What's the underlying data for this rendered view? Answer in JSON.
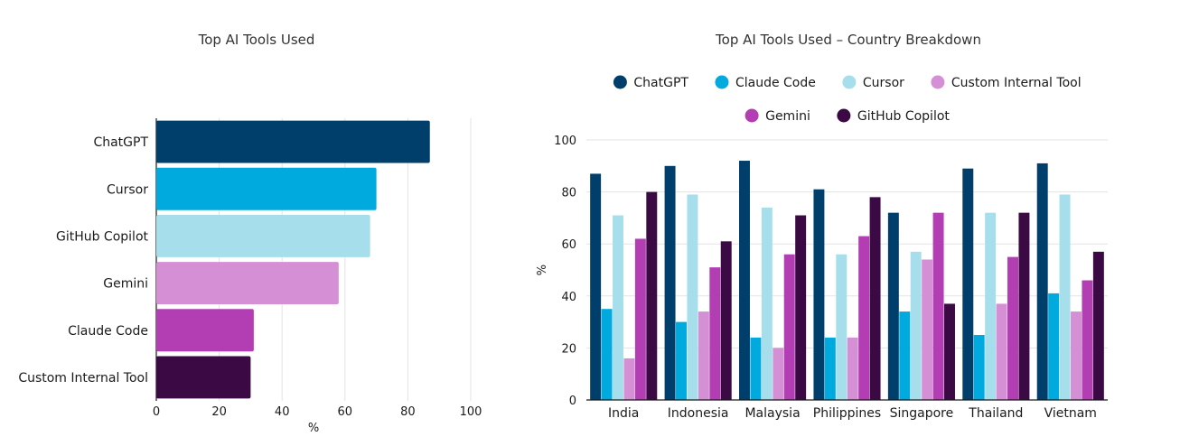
{
  "chart_data": [
    {
      "type": "bar",
      "orientation": "horizontal",
      "title": "Top AI Tools Used",
      "categories": [
        "ChatGPT",
        "Cursor",
        "GitHub Copilot",
        "Gemini",
        "Claude Code",
        "Custom Internal Tool"
      ],
      "values": [
        87,
        70,
        68,
        58,
        31,
        30
      ],
      "colors": [
        "#003f6b",
        "#00aadf",
        "#a6dfeb",
        "#d58fd5",
        "#b33db3",
        "#3b0a45"
      ],
      "xlabel": "%",
      "ylabel": "",
      "xlim": [
        0,
        100
      ],
      "xticks": [
        0,
        20,
        40,
        60,
        80,
        100
      ],
      "grid": true
    },
    {
      "type": "bar",
      "orientation": "vertical",
      "title": "Top AI Tools Used – Country Breakdown",
      "categories": [
        "India",
        "Indonesia",
        "Malaysia",
        "Philippines",
        "Singapore",
        "Thailand",
        "Vietnam"
      ],
      "series": [
        {
          "name": "ChatGPT",
          "color": "#003f6b",
          "values": [
            87,
            90,
            92,
            81,
            72,
            89,
            91
          ]
        },
        {
          "name": "Claude Code",
          "color": "#00aadf",
          "values": [
            35,
            30,
            24,
            24,
            34,
            25,
            41
          ]
        },
        {
          "name": "Cursor",
          "color": "#a6dfeb",
          "values": [
            71,
            79,
            74,
            56,
            57,
            72,
            79
          ]
        },
        {
          "name": "Custom Internal Tool",
          "color": "#d58fd5",
          "values": [
            16,
            34,
            20,
            24,
            54,
            37,
            34
          ]
        },
        {
          "name": "Gemini",
          "color": "#b33db3",
          "values": [
            62,
            51,
            56,
            63,
            72,
            55,
            46
          ]
        },
        {
          "name": "GitHub Copilot",
          "color": "#3b0a45",
          "values": [
            80,
            61,
            71,
            78,
            37,
            72,
            57
          ]
        }
      ],
      "xlabel": "",
      "ylabel": "%",
      "ylim": [
        0,
        100
      ],
      "yticks": [
        0,
        20,
        40,
        60,
        80,
        100
      ],
      "legend": "top",
      "grid": true
    }
  ]
}
